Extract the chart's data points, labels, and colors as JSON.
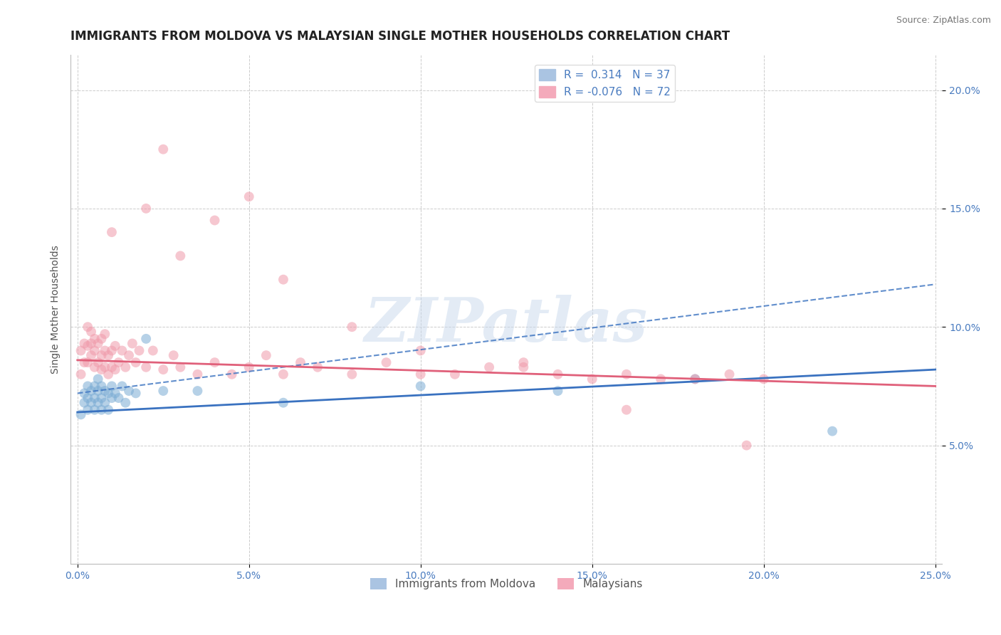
{
  "title": "IMMIGRANTS FROM MOLDOVA VS MALAYSIAN SINGLE MOTHER HOUSEHOLDS CORRELATION CHART",
  "source": "Source: ZipAtlas.com",
  "ylabel": "Single Mother Households",
  "xlim": [
    -0.002,
    0.252
  ],
  "ylim": [
    0.0,
    0.215
  ],
  "xticks": [
    0.0,
    0.05,
    0.1,
    0.15,
    0.2,
    0.25
  ],
  "yticks": [
    0.05,
    0.1,
    0.15,
    0.2
  ],
  "xtick_labels": [
    "0.0%",
    "5.0%",
    "10.0%",
    "15.0%",
    "20.0%",
    "25.0%"
  ],
  "ytick_labels": [
    "5.0%",
    "10.0%",
    "15.0%",
    "20.0%"
  ],
  "legend1_entries": [
    {
      "label": "R =  0.314   N = 37",
      "color": "#aac4e2"
    },
    {
      "label": "R = -0.076   N = 72",
      "color": "#f4aabb"
    }
  ],
  "legend2_labels": [
    "Immigrants from Moldova",
    "Malaysians"
  ],
  "legend2_colors": [
    "#aac4e2",
    "#f4aabb"
  ],
  "blue_scatter_x": [
    0.001,
    0.002,
    0.002,
    0.003,
    0.003,
    0.003,
    0.004,
    0.004,
    0.005,
    0.005,
    0.005,
    0.006,
    0.006,
    0.006,
    0.007,
    0.007,
    0.007,
    0.008,
    0.008,
    0.009,
    0.009,
    0.01,
    0.01,
    0.011,
    0.012,
    0.013,
    0.014,
    0.015,
    0.017,
    0.02,
    0.025,
    0.035,
    0.06,
    0.1,
    0.14,
    0.18,
    0.22
  ],
  "blue_scatter_y": [
    0.063,
    0.068,
    0.072,
    0.065,
    0.07,
    0.075,
    0.068,
    0.073,
    0.065,
    0.07,
    0.075,
    0.068,
    0.073,
    0.078,
    0.065,
    0.07,
    0.075,
    0.068,
    0.073,
    0.065,
    0.072,
    0.07,
    0.075,
    0.072,
    0.07,
    0.075,
    0.068,
    0.073,
    0.072,
    0.095,
    0.073,
    0.073,
    0.068,
    0.075,
    0.073,
    0.078,
    0.056
  ],
  "pink_scatter_x": [
    0.001,
    0.001,
    0.002,
    0.002,
    0.003,
    0.003,
    0.003,
    0.004,
    0.004,
    0.004,
    0.005,
    0.005,
    0.005,
    0.006,
    0.006,
    0.007,
    0.007,
    0.007,
    0.008,
    0.008,
    0.008,
    0.009,
    0.009,
    0.01,
    0.01,
    0.011,
    0.011,
    0.012,
    0.013,
    0.014,
    0.015,
    0.016,
    0.017,
    0.018,
    0.02,
    0.022,
    0.025,
    0.028,
    0.03,
    0.035,
    0.04,
    0.045,
    0.05,
    0.055,
    0.06,
    0.065,
    0.07,
    0.08,
    0.09,
    0.1,
    0.11,
    0.12,
    0.13,
    0.14,
    0.15,
    0.16,
    0.17,
    0.18,
    0.19,
    0.2,
    0.01,
    0.02,
    0.025,
    0.03,
    0.04,
    0.05,
    0.06,
    0.08,
    0.1,
    0.13,
    0.16,
    0.195
  ],
  "pink_scatter_y": [
    0.08,
    0.09,
    0.085,
    0.093,
    0.085,
    0.092,
    0.1,
    0.088,
    0.093,
    0.098,
    0.083,
    0.09,
    0.095,
    0.085,
    0.093,
    0.082,
    0.088,
    0.095,
    0.083,
    0.09,
    0.097,
    0.08,
    0.088,
    0.083,
    0.09,
    0.082,
    0.092,
    0.085,
    0.09,
    0.083,
    0.088,
    0.093,
    0.085,
    0.09,
    0.083,
    0.09,
    0.082,
    0.088,
    0.083,
    0.08,
    0.085,
    0.08,
    0.083,
    0.088,
    0.08,
    0.085,
    0.083,
    0.08,
    0.085,
    0.08,
    0.08,
    0.083,
    0.083,
    0.08,
    0.078,
    0.08,
    0.078,
    0.078,
    0.08,
    0.078,
    0.14,
    0.15,
    0.175,
    0.13,
    0.145,
    0.155,
    0.12,
    0.1,
    0.09,
    0.085,
    0.065,
    0.05
  ],
  "blue_line": [
    0.0,
    0.25,
    0.064,
    0.082
  ],
  "blue_dashed_line": [
    0.0,
    0.25,
    0.072,
    0.118
  ],
  "pink_line": [
    0.0,
    0.25,
    0.086,
    0.075
  ],
  "scatter_size": 100,
  "scatter_alpha": 0.55,
  "blue_color": "#7BACD4",
  "pink_color": "#F09AAA",
  "blue_line_color": "#3A72C0",
  "pink_line_color": "#E0607A",
  "grid_color": "#CCCCCC",
  "watermark": "ZIPatlas",
  "watermark_color": "#C8D8EC",
  "title_fontsize": 12,
  "axis_label_fontsize": 10,
  "tick_fontsize": 10,
  "source_fontsize": 9,
  "tick_color": "#4A7CC0"
}
